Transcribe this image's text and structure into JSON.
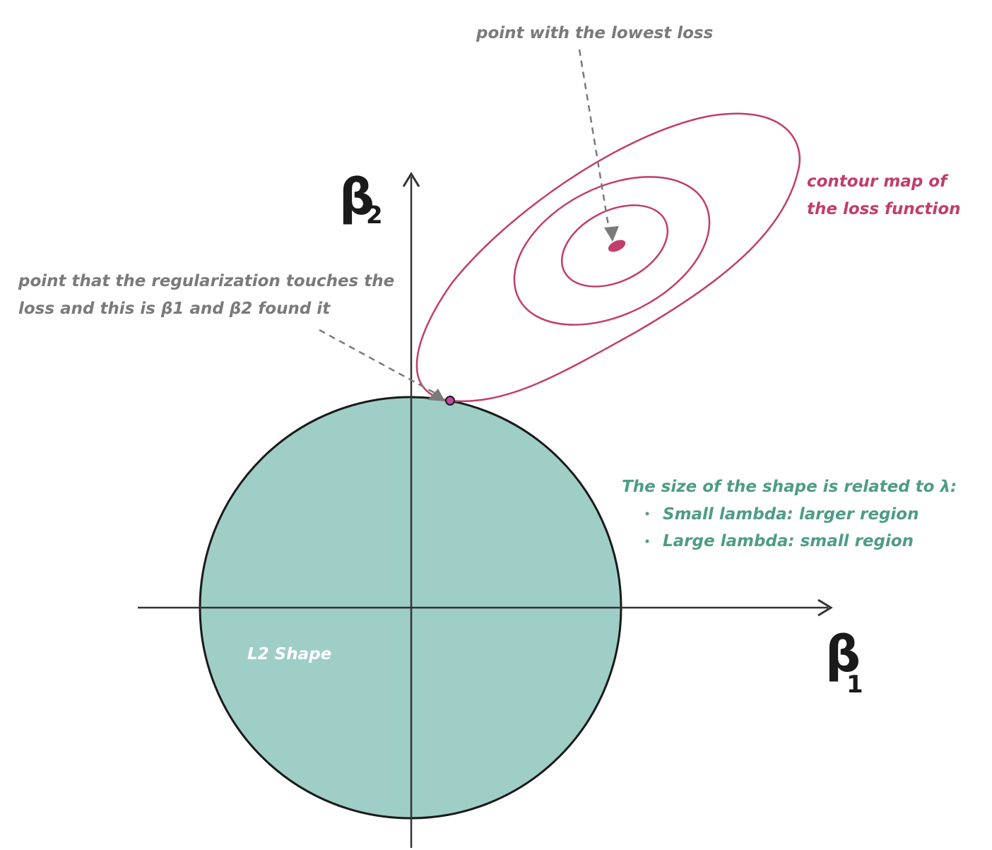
{
  "colors": {
    "background": "#ffffff",
    "axis": "#333333",
    "region_fill": "#9ecec5",
    "region_stroke": "#1a1a1a",
    "contour": "#c23d6a",
    "contour_label": "#c23d6a",
    "grey_annotation": "#7a7a7a",
    "green_annotation": "#4f9c86",
    "touch_point_fill": "#c049a6",
    "shape_label": "#ffffff"
  },
  "axes": {
    "x": {
      "symbol": "β",
      "subscript": "1"
    },
    "y": {
      "symbol": "β",
      "subscript": "2"
    }
  },
  "region": {
    "label": "L2 Shape"
  },
  "annotations": {
    "lowest_loss": "point with the lowest loss",
    "contour_line1": "contour map of",
    "contour_line2": "the loss function",
    "touch_line1": "point that the regularization touches the",
    "touch_line2": "loss and this is β1 and β2 found it",
    "lambda_title": "The size of the shape is related to λ:",
    "lambda_items": [
      "Small lambda: larger region",
      "Large lambda: small region"
    ]
  },
  "icons": [
    "x-axis-arrow-icon",
    "y-axis-arrow-icon",
    "dashed-pointer-arrow-icon",
    "bullet-icon"
  ]
}
